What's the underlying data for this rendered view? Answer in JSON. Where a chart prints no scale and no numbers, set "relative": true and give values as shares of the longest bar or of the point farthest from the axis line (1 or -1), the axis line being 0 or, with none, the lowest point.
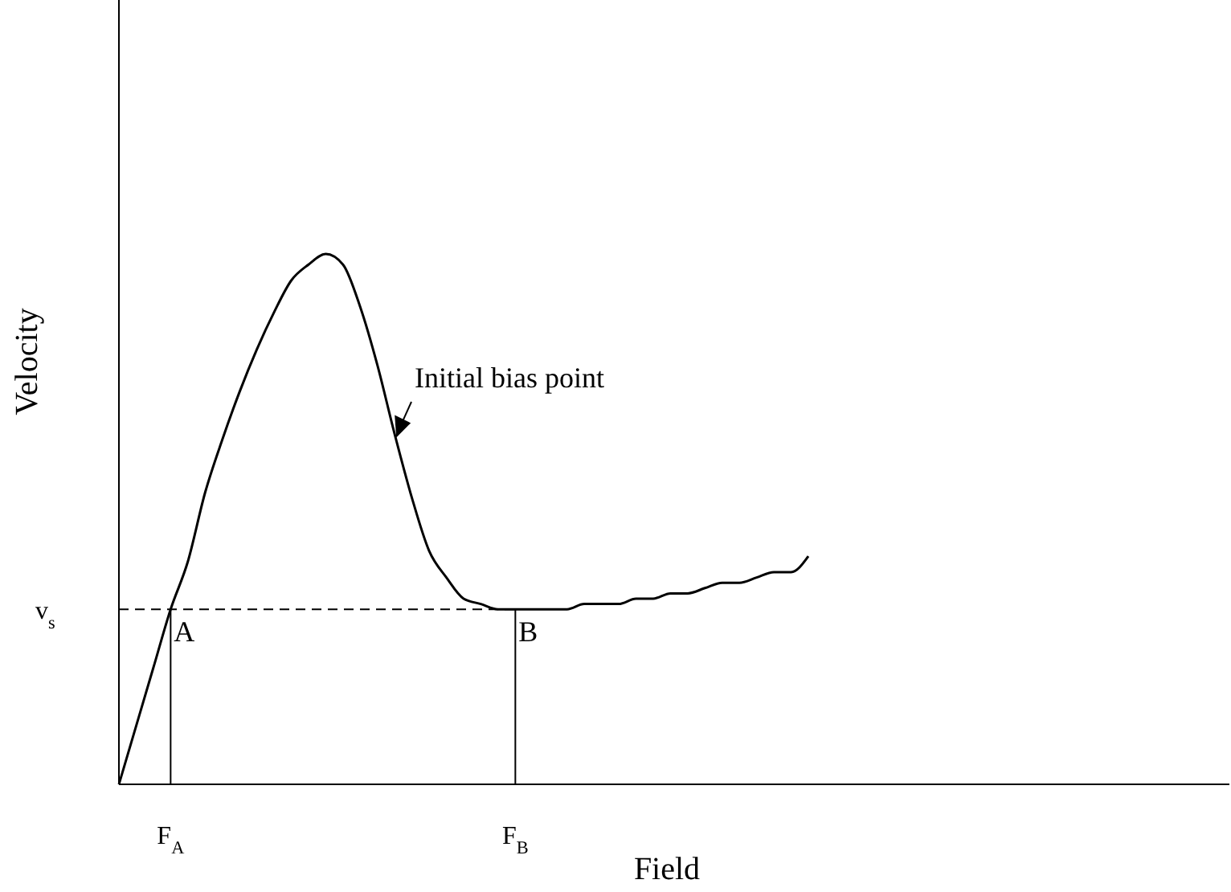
{
  "chart_data": {
    "type": "line",
    "relative": true,
    "xlabel": "Field",
    "ylabel": "Velocity",
    "legend": false,
    "marker": "none",
    "categories": [
      null,
      null,
      null,
      "F$_{A}$",
      null,
      null,
      null,
      null,
      null,
      null,
      null,
      null,
      null,
      null,
      null,
      null,
      null,
      null,
      null,
      null,
      null,
      null,
      null,
      "F$_{B}$",
      null,
      null,
      null,
      null,
      null,
      null,
      null,
      null,
      null,
      null,
      null,
      null,
      null,
      null,
      null,
      null,
      null
    ],
    "series": [
      {
        "color": "#000000",
        "values": [
          0,
          0.11,
          0.22,
          0.33,
          0.42,
          0.55,
          0.65,
          0.74,
          0.82,
          0.89,
          0.95,
          0.98,
          1,
          0.98,
          0.9,
          0.79,
          0.66,
          0.54,
          0.44,
          0.39,
          0.35,
          0.34,
          0.33,
          0.33,
          0.33,
          0.33,
          0.33,
          0.34,
          0.34,
          0.34,
          0.35,
          0.35,
          0.36,
          0.36,
          0.37,
          0.38,
          0.38,
          0.39,
          0.4,
          0.4,
          0.43
        ]
      }
    ],
    "ref_lines": [
      {
        "axis": "y",
        "value": 0.33,
        "label": "v$_{s}$",
        "line_style": "dashed",
        "color": "#000000"
      },
      {
        "axis": "x",
        "value": "F$_{A}$",
        "color": "#000000"
      },
      {
        "axis": "x",
        "value": "F$_{B}$",
        "color": "#000000"
      }
    ],
    "annotations": [
      "Initial bias point",
      "A",
      "B"
    ]
  }
}
